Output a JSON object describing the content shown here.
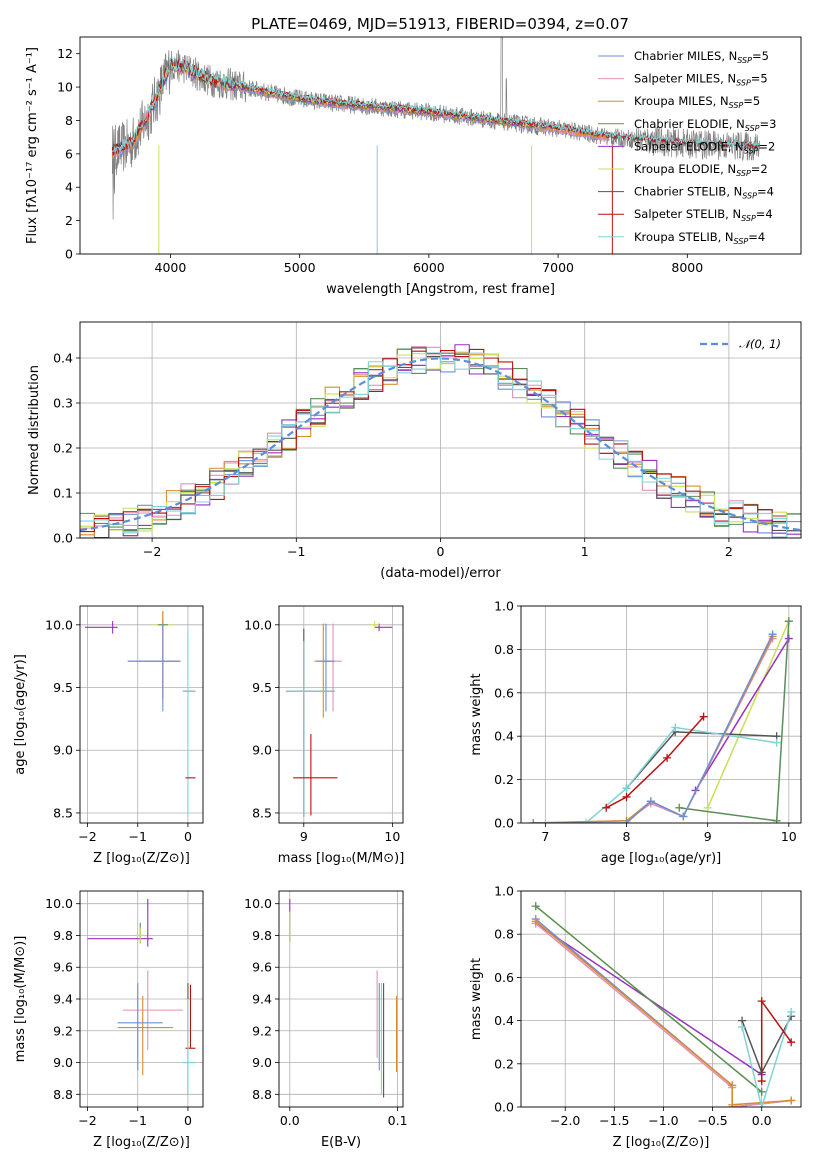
{
  "figure_title": "PLATE=0469, MJD=51913, FIBERID=0394, z=0.07",
  "colors": {
    "chabrier_miles": "#6b8fd6",
    "salpeter_miles": "#e58fb8",
    "kroupa_miles": "#d98c2b",
    "chabrier_elodie": "#5a8f5a",
    "salpeter_elodie": "#9b2fc2",
    "kroupa_elodie": "#c8e05a",
    "chabrier_stelib": "#555555",
    "salpeter_stelib": "#bb1111",
    "kroupa_stelib": "#7fd3d8",
    "data_spectrum": "#808080",
    "normal_curve": "#5b8ddd"
  },
  "chart_data": [
    {
      "id": "spectrum",
      "type": "line",
      "xlabel": "wavelength [Angstrom, rest frame]",
      "ylabel": "Flux [fλ10⁻¹⁷ erg cm⁻² s⁻¹ A⁻¹]",
      "xlim": [
        3300,
        8880
      ],
      "ylim": [
        0,
        13
      ],
      "xticks": [
        4000,
        5000,
        6000,
        7000,
        8000
      ],
      "yticks": [
        0,
        2,
        4,
        6,
        8,
        10,
        12
      ],
      "grid": false,
      "legend_position": "top-right",
      "legend": [
        "Chabrier MILES, N_SSP=5",
        "Salpeter MILES, N_SSP=5",
        "Kroupa MILES, N_SSP=5",
        "Chabrier ELODIE, N_SSP=3",
        "Salpeter ELODIE, N_SSP=2",
        "Kroupa ELODIE, N_SSP=2",
        "Chabrier STELIB, N_SSP=4",
        "Salpeter STELIB, N_SSP=4",
        "Kroupa STELIB, N_SSP=4"
      ],
      "continuum_x": [
        3550,
        3700,
        3850,
        4000,
        4100,
        4300,
        4500,
        4800,
        5000,
        5300,
        5600,
        6000,
        6300,
        6600,
        7000,
        7400,
        7700,
        8000,
        8300,
        8550
      ],
      "continuum_y": [
        6.1,
        6.6,
        8.6,
        11.3,
        11.2,
        10.4,
        10.1,
        9.6,
        9.3,
        9.0,
        8.8,
        8.5,
        8.2,
        7.9,
        7.5,
        7.0,
        6.8,
        6.6,
        6.5,
        6.4
      ]
    },
    {
      "id": "residual_histogram",
      "type": "bar",
      "xlabel": "(data-model)/error",
      "ylabel": "Normed distribution",
      "xlim": [
        -2.5,
        2.5
      ],
      "ylim": [
        0,
        0.48
      ],
      "xticks": [
        -2,
        -1,
        0,
        1,
        2
      ],
      "yticks": [
        0.0,
        0.1,
        0.2,
        0.3,
        0.4
      ],
      "grid": true,
      "legend_position": "top-right",
      "legend": [
        "𝒩(0, 1)"
      ],
      "bin_width": 0.1
    },
    {
      "id": "age_vs_Z",
      "type": "scatter",
      "xlabel": "Z [log₁₀(Z/Z⊙)]",
      "ylabel": "age  [log₁₀(age/yr)]",
      "xlim": [
        -2.15,
        0.3
      ],
      "ylim": [
        8.42,
        10.15
      ],
      "xticks": [
        -2,
        -1,
        0
      ],
      "yticks": [
        8.5,
        9.0,
        9.5,
        10.0
      ],
      "grid": true,
      "points": [
        {
          "model": "salpeter_elodie",
          "x": -1.5,
          "y": 9.98,
          "xerr": [
            0.55,
            0.1
          ],
          "yerr": [
            0.05,
            0.05
          ]
        },
        {
          "model": "kroupa_elodie",
          "x": -0.5,
          "y": 10.0,
          "xerr": [
            0.2,
            0.2
          ],
          "yerr": [
            0.05,
            0.05
          ]
        },
        {
          "model": "chabrier_elodie",
          "x": -0.5,
          "y": 10.0,
          "xerr": [
            0.1,
            0.1
          ],
          "yerr": [
            0.03,
            0.03
          ]
        },
        {
          "model": "salpeter_miles",
          "x": -0.5,
          "y": 9.71,
          "xerr": [
            0.7,
            0.35
          ],
          "yerr": [
            0.3,
            0.4
          ]
        },
        {
          "model": "kroupa_miles",
          "x": -0.5,
          "y": 9.71,
          "xerr": [
            0.55,
            0.35
          ],
          "yerr": [
            0.3,
            0.4
          ]
        },
        {
          "model": "chabrier_miles",
          "x": -0.5,
          "y": 9.71,
          "xerr": [
            0.7,
            0.35
          ],
          "yerr": [
            0.4,
            0.3
          ]
        },
        {
          "model": "chabrier_stelib",
          "x": 0.0,
          "y": 9.47,
          "xerr": [
            0.1,
            0.15
          ],
          "yerr": [
            0.0,
            0.0
          ]
        },
        {
          "model": "kroupa_stelib",
          "x": 0.0,
          "y": 9.47,
          "xerr": [
            0.1,
            0.15
          ],
          "yerr": [
            1.0,
            0.5
          ]
        },
        {
          "model": "salpeter_stelib",
          "x": 0.0,
          "y": 8.78,
          "xerr": [
            0.05,
            0.15
          ],
          "yerr": [
            0.0,
            0.0
          ]
        }
      ]
    },
    {
      "id": "age_vs_mass",
      "type": "scatter",
      "xlabel": "mass [log₁₀(M/M⊙)]",
      "ylabel": "",
      "xlim": [
        8.72,
        10.12
      ],
      "ylim": [
        8.42,
        10.15
      ],
      "xticks": [
        9,
        10
      ],
      "yticks": [
        8.5,
        9.0,
        9.5,
        10.0
      ],
      "grid": true,
      "points": [
        {
          "model": "salpeter_elodie",
          "x": 9.85,
          "y": 9.98,
          "xerr": [
            0.05,
            0.15
          ],
          "yerr": [
            0.03,
            0.03
          ]
        },
        {
          "model": "kroupa_elodie",
          "x": 9.8,
          "y": 10.0,
          "xerr": [
            0.05,
            0.05
          ],
          "yerr": [
            0.03,
            0.03
          ]
        },
        {
          "model": "salpeter_miles",
          "x": 9.33,
          "y": 9.71,
          "xerr": [
            0.1,
            0.1
          ],
          "yerr": [
            0.4,
            0.3
          ]
        },
        {
          "model": "kroupa_miles",
          "x": 9.22,
          "y": 9.71,
          "xerr": [
            0.1,
            0.1
          ],
          "yerr": [
            0.45,
            0.3
          ]
        },
        {
          "model": "chabrier_miles",
          "x": 9.25,
          "y": 9.71,
          "xerr": [
            0.1,
            0.1
          ],
          "yerr": [
            0.4,
            0.3
          ]
        },
        {
          "model": "chabrier_stelib",
          "x": 9.0,
          "y": 9.47,
          "xerr": [
            0.2,
            0.35
          ],
          "yerr": [
            1.0,
            0.5
          ]
        },
        {
          "model": "kroupa_stelib",
          "x": 9.0,
          "y": 9.47,
          "xerr": [
            0.2,
            0.35
          ],
          "yerr": [
            1.0,
            0.4
          ]
        },
        {
          "model": "salpeter_stelib",
          "x": 9.08,
          "y": 8.78,
          "xerr": [
            0.2,
            0.3
          ],
          "yerr": [
            0.3,
            0.35
          ]
        }
      ]
    },
    {
      "id": "mass_weight_vs_age",
      "type": "line",
      "xlabel": "age  [log₁₀(age/yr)]",
      "ylabel": "mass weight",
      "xlim": [
        6.7,
        10.15
      ],
      "ylim": [
        0,
        1.0
      ],
      "xticks": [
        7,
        8,
        9,
        10
      ],
      "yticks": [
        0.0,
        0.2,
        0.4,
        0.6,
        0.8,
        1.0
      ],
      "grid": true,
      "series": [
        {
          "model": "kroupa_elodie",
          "x": [
            9.0,
            10.0
          ],
          "y": [
            0.07,
            0.93
          ]
        },
        {
          "model": "salpeter_elodie",
          "x": [
            8.85,
            10.0
          ],
          "y": [
            0.15,
            0.85
          ]
        },
        {
          "model": "chabrier_elodie",
          "x": [
            8.65,
            9.85,
            10.0
          ],
          "y": [
            0.07,
            0.01,
            0.93
          ]
        },
        {
          "model": "chabrier_stelib",
          "x": [
            8.0,
            8.6,
            9.85
          ],
          "y": [
            0.16,
            0.42,
            0.4
          ]
        },
        {
          "model": "kroupa_stelib",
          "x": [
            7.5,
            8.0,
            8.6,
            9.85
          ],
          "y": [
            0.0,
            0.16,
            0.44,
            0.37
          ]
        },
        {
          "model": "salpeter_stelib",
          "x": [
            7.75,
            8.0,
            8.5,
            8.95
          ],
          "y": [
            0.07,
            0.12,
            0.3,
            0.49
          ]
        },
        {
          "model": "salpeter_miles",
          "x": [
            6.85,
            8.0,
            8.3,
            8.7,
            9.8
          ],
          "y": [
            0.0,
            0.01,
            0.09,
            0.03,
            0.85
          ]
        },
        {
          "model": "kroupa_miles",
          "x": [
            6.85,
            8.0,
            8.3,
            8.7,
            9.8
          ],
          "y": [
            0.0,
            0.01,
            0.1,
            0.03,
            0.86
          ]
        },
        {
          "model": "chabrier_miles",
          "x": [
            6.85,
            8.0,
            8.3,
            8.7,
            9.8
          ],
          "y": [
            0.0,
            0.0,
            0.1,
            0.03,
            0.87
          ]
        }
      ]
    },
    {
      "id": "mass_vs_Z",
      "type": "scatter",
      "xlabel": "Z [log₁₀(Z/Z⊙)]",
      "ylabel": "mass [log₁₀(M/M⊙)]",
      "xlim": [
        -2.15,
        0.3
      ],
      "ylim": [
        8.72,
        10.08
      ],
      "xticks": [
        -2,
        -1,
        0
      ],
      "yticks": [
        8.8,
        9.0,
        9.2,
        9.4,
        9.6,
        9.8,
        10.0
      ],
      "grid": true,
      "points": [
        {
          "model": "salpeter_elodie",
          "x": -0.8,
          "y": 9.78,
          "xerr": [
            1.2,
            0.1
          ],
          "yerr": [
            0.05,
            0.25
          ]
        },
        {
          "model": "chabrier_elodie",
          "x": -0.95,
          "y": 9.8,
          "xerr": [
            0.1,
            0.1
          ],
          "yerr": [
            0.05,
            0.08
          ]
        },
        {
          "model": "kroupa_elodie",
          "x": -0.95,
          "y": 9.8,
          "xerr": [
            0.1,
            0.1
          ],
          "yerr": [
            0.05,
            0.05
          ]
        },
        {
          "model": "salpeter_miles",
          "x": -0.8,
          "y": 9.33,
          "xerr": [
            0.5,
            0.7
          ],
          "yerr": [
            0.25,
            0.25
          ]
        },
        {
          "model": "kroupa_miles",
          "x": -0.9,
          "y": 9.22,
          "xerr": [
            0.5,
            0.6
          ],
          "yerr": [
            0.3,
            0.2
          ]
        },
        {
          "model": "chabrier_miles",
          "x": -1.0,
          "y": 9.25,
          "xerr": [
            0.4,
            0.5
          ],
          "yerr": [
            0.3,
            0.25
          ]
        },
        {
          "model": "salpeter_stelib",
          "x": 0.05,
          "y": 9.09,
          "xerr": [
            0.1,
            0.1
          ],
          "yerr": [
            0.0,
            0.4
          ]
        },
        {
          "model": "chabrier_stelib",
          "x": 0.0,
          "y": 9.0,
          "xerr": [
            0.1,
            0.15
          ],
          "yerr": [
            0.2,
            0.5
          ]
        },
        {
          "model": "kroupa_stelib",
          "x": 0.0,
          "y": 9.0,
          "xerr": [
            0.1,
            0.15
          ],
          "yerr": [
            0.2,
            0.4
          ]
        }
      ]
    },
    {
      "id": "mass_vs_ebv",
      "type": "scatter",
      "xlabel": "E(B-V)",
      "ylabel": "",
      "xlim": [
        -0.01,
        0.105
      ],
      "ylim": [
        8.72,
        10.08
      ],
      "xticks": [
        0.0,
        0.1
      ],
      "yticks": [
        8.8,
        9.0,
        9.2,
        9.4,
        9.6,
        9.8,
        10.0
      ],
      "grid": true,
      "points": [
        {
          "model": "salpeter_elodie",
          "x": 0.0,
          "y": 9.88,
          "xerr": [
            0.0,
            0.0
          ],
          "yerr": [
            0.12,
            0.15
          ]
        },
        {
          "model": "kroupa_elodie",
          "x": 0.0,
          "y": 9.85,
          "xerr": [
            0.0,
            0.0
          ],
          "yerr": [
            0.1,
            0.1
          ]
        },
        {
          "model": "salpeter_miles",
          "x": 0.081,
          "y": 9.33,
          "xerr": [
            0.0,
            0.0
          ],
          "yerr": [
            0.3,
            0.25
          ]
        },
        {
          "model": "chabrier_miles",
          "x": 0.083,
          "y": 9.25,
          "xerr": [
            0.0,
            0.0
          ],
          "yerr": [
            0.3,
            0.25
          ]
        },
        {
          "model": "chabrier_stelib",
          "x": 0.087,
          "y": 9.1,
          "xerr": [
            0.0,
            0.0
          ],
          "yerr": [
            0.32,
            0.4
          ]
        },
        {
          "model": "kroupa_stelib",
          "x": 0.085,
          "y": 9.1,
          "xerr": [
            0.0,
            0.0
          ],
          "yerr": [
            0.3,
            0.4
          ]
        },
        {
          "model": "kroupa_miles",
          "x": 0.099,
          "y": 9.22,
          "xerr": [
            0.0,
            0.0
          ],
          "yerr": [
            0.28,
            0.2
          ]
        }
      ]
    },
    {
      "id": "mass_weight_vs_Z",
      "type": "line",
      "xlabel": "Z [log₁₀(Z/Z⊙)]",
      "ylabel": "mass weight",
      "xlim": [
        -2.45,
        0.4
      ],
      "ylim": [
        0,
        1.0
      ],
      "xticks": [
        -2.0,
        -1.5,
        -1.0,
        -0.5,
        0.0
      ],
      "yticks": [
        0.0,
        0.2,
        0.4,
        0.6,
        0.8,
        1.0
      ],
      "grid": true,
      "series": [
        {
          "model": "kroupa_elodie",
          "x": [
            -2.3,
            0.0
          ],
          "y": [
            0.93,
            0.07
          ]
        },
        {
          "model": "salpeter_elodie",
          "x": [
            -2.3,
            0.0
          ],
          "y": [
            0.85,
            0.15
          ]
        },
        {
          "model": "chabrier_elodie",
          "x": [
            -2.3,
            0.0
          ],
          "y": [
            0.93,
            0.07
          ]
        },
        {
          "model": "chabrier_miles",
          "x": [
            -2.3,
            -0.3,
            -0.3,
            0.3
          ],
          "y": [
            0.87,
            0.1,
            0.0,
            0.03
          ]
        },
        {
          "model": "salpeter_miles",
          "x": [
            -2.3,
            -0.3,
            -0.3,
            0.3
          ],
          "y": [
            0.85,
            0.09,
            0.0,
            0.03
          ]
        },
        {
          "model": "kroupa_miles",
          "x": [
            -2.3,
            -0.3,
            -0.3,
            0.3
          ],
          "y": [
            0.86,
            0.1,
            0.01,
            0.03
          ]
        },
        {
          "model": "chabrier_stelib",
          "x": [
            -0.2,
            0.0,
            0.3
          ],
          "y": [
            0.4,
            0.16,
            0.42
          ]
        },
        {
          "model": "kroupa_stelib",
          "x": [
            -0.2,
            0.0,
            0.3
          ],
          "y": [
            0.37,
            0.0,
            0.44
          ]
        },
        {
          "model": "salpeter_stelib",
          "x": [
            0.0,
            0.0,
            0.3
          ],
          "y": [
            0.12,
            0.49,
            0.3
          ]
        }
      ]
    }
  ]
}
